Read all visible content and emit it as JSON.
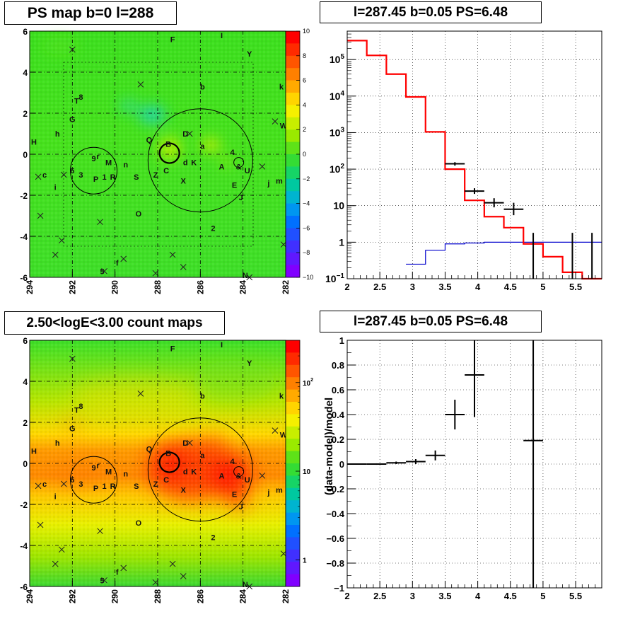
{
  "titles": {
    "tl": "PS map b=0 l=288",
    "tr": "l=287.45 b=0.05 PS=6.48",
    "bl": "2.50<logE<3.00 count maps",
    "br": "l=287.45 b=0.05 PS=6.48"
  },
  "colors": {
    "data": "#000000",
    "model": "#ff0000",
    "background": "#0000cc",
    "grid": "#000000"
  },
  "map_markers": [
    {
      "t": "F",
      "l": 287.3,
      "b": 5.6
    },
    {
      "t": "I",
      "l": 285.0,
      "b": 5.8
    },
    {
      "t": "Y",
      "l": 283.7,
      "b": 4.9
    },
    {
      "t": "b",
      "l": 285.9,
      "b": 3.3
    },
    {
      "t": "k",
      "l": 282.2,
      "b": 3.3
    },
    {
      "t": "8",
      "l": 291.6,
      "b": 2.8
    },
    {
      "t": "T",
      "l": 291.8,
      "b": 2.6
    },
    {
      "t": "G",
      "l": 292.0,
      "b": 1.7
    },
    {
      "t": "W",
      "l": 282.1,
      "b": 1.4
    },
    {
      "t": "h",
      "l": 292.7,
      "b": 1.0
    },
    {
      "t": "D",
      "l": 286.7,
      "b": 1.0
    },
    {
      "t": "H",
      "l": 293.8,
      "b": 0.6
    },
    {
      "t": "Q",
      "l": 288.4,
      "b": 0.7
    },
    {
      "t": "B",
      "l": 287.5,
      "b": 0.5
    },
    {
      "t": "a",
      "l": 285.9,
      "b": 0.4
    },
    {
      "t": "4",
      "l": 284.5,
      "b": 0.1
    },
    {
      "t": "9",
      "l": 291.0,
      "b": -0.2
    },
    {
      "t": "r",
      "l": 290.8,
      "b": -0.1
    },
    {
      "t": "M",
      "l": 290.3,
      "b": -0.4
    },
    {
      "t": "n",
      "l": 289.5,
      "b": -0.5
    },
    {
      "t": "d",
      "l": 286.7,
      "b": -0.4
    },
    {
      "t": "K",
      "l": 286.3,
      "b": -0.4
    },
    {
      "t": "A",
      "l": 285.0,
      "b": -0.6
    },
    {
      "t": "&",
      "l": 284.2,
      "b": -0.6
    },
    {
      "t": "U",
      "l": 283.8,
      "b": -0.8
    },
    {
      "t": "c",
      "l": 293.3,
      "b": -1.0
    },
    {
      "t": "6",
      "l": 292.0,
      "b": -0.8
    },
    {
      "t": "3",
      "l": 291.6,
      "b": -1.0
    },
    {
      "t": "P",
      "l": 290.9,
      "b": -1.2
    },
    {
      "t": "1",
      "l": 290.5,
      "b": -1.1
    },
    {
      "t": "R",
      "l": 290.1,
      "b": -1.1
    },
    {
      "t": "S",
      "l": 289.0,
      "b": -1.1
    },
    {
      "t": "Z",
      "l": 288.1,
      "b": -1.0
    },
    {
      "t": "C",
      "l": 287.6,
      "b": -0.8
    },
    {
      "t": "m",
      "l": 282.3,
      "b": -1.3
    },
    {
      "t": "X",
      "l": 286.8,
      "b": -1.3
    },
    {
      "t": "j",
      "l": 282.8,
      "b": -1.4
    },
    {
      "t": "i",
      "l": 292.8,
      "b": -1.6
    },
    {
      "t": "E",
      "l": 284.4,
      "b": -1.5
    },
    {
      "t": "J",
      "l": 284.1,
      "b": -2.1
    },
    {
      "t": "O",
      "l": 288.9,
      "b": -2.9
    },
    {
      "t": "2",
      "l": 285.4,
      "b": -3.6
    },
    {
      "t": "f",
      "l": 289.9,
      "b": -5.3
    },
    {
      "t": "5",
      "l": 290.6,
      "b": -5.7
    },
    {
      "t": "N",
      "l": 283.9,
      "b": -5.9
    }
  ],
  "chart_data": [
    {
      "type": "heatmap",
      "title": "PS map b=0 l=288",
      "xlabel": "",
      "ylabel": "",
      "xlim": [
        294,
        282
      ],
      "ylim": [
        -6,
        6
      ],
      "xticks": [
        294,
        292,
        290,
        288,
        286,
        284,
        282
      ],
      "yticks": [
        -6,
        -4,
        -2,
        0,
        2,
        4,
        6
      ],
      "colorbar": {
        "range": [
          -10,
          10
        ],
        "ticks": [
          -10,
          -8,
          -6,
          -4,
          -2,
          0,
          2,
          4,
          6,
          8,
          10
        ],
        "scale": "linear"
      }
    },
    {
      "type": "line",
      "title": "l=287.45 b=0.05 PS=6.48",
      "xlabel": "",
      "ylabel": "",
      "xlim": [
        2,
        5.9
      ],
      "ylim": [
        0.1,
        600000
      ],
      "yscale": "log",
      "grid": true,
      "xticks": [
        2,
        2.5,
        3,
        3.5,
        4,
        4.5,
        5,
        5.5
      ],
      "yticks": [
        {
          "v": 0.1,
          "base": "10",
          "exp": "−1"
        },
        {
          "v": 1,
          "base": "1",
          "exp": ""
        },
        {
          "v": 10,
          "base": "10",
          "exp": ""
        },
        {
          "v": 100,
          "base": "10",
          "exp": "2"
        },
        {
          "v": 1000,
          "base": "10",
          "exp": "3"
        },
        {
          "v": 10000,
          "base": "10",
          "exp": "4"
        },
        {
          "v": 100000,
          "base": "10",
          "exp": "5"
        }
      ],
      "bin_edges": [
        2.0,
        2.3,
        2.6,
        2.9,
        3.2,
        3.5,
        3.8,
        4.1,
        4.4,
        4.7,
        5.0,
        5.3,
        5.6,
        5.9
      ],
      "series": [
        {
          "values": [
            330000,
            130000,
            40000,
            9500,
            1050,
            100,
            14,
            5,
            2.5,
            0.9,
            0.4,
            0.15,
            0.1
          ]
        },
        {
          "values": [
            null,
            null,
            null,
            0.25,
            0.6,
            0.9,
            0.95,
            1,
            1,
            1,
            1,
            1,
            1
          ]
        }
      ],
      "points": [
        {
          "x": 3.65,
          "y": 140,
          "xerr": 0.15,
          "ylo": 125,
          "yhi": 155
        },
        {
          "x": 3.95,
          "y": 25,
          "xerr": 0.15,
          "ylo": 21,
          "yhi": 30
        },
        {
          "x": 4.25,
          "y": 12,
          "xerr": 0.15,
          "ylo": 9,
          "yhi": 16
        },
        {
          "x": 4.55,
          "y": 8,
          "xerr": 0.15,
          "ylo": 5.5,
          "yhi": 12
        },
        {
          "x": 4.85,
          "y": null,
          "xerr": 0.15,
          "ylo": 0.1,
          "yhi": 1.8
        },
        {
          "x": 5.45,
          "y": null,
          "xerr": 0.15,
          "ylo": 0.1,
          "yhi": 1.8
        },
        {
          "x": 5.75,
          "y": null,
          "xerr": 0.15,
          "ylo": 0.1,
          "yhi": 1.8
        }
      ]
    },
    {
      "type": "heatmap",
      "title": "2.50<logE<3.00 count maps",
      "xlabel": "",
      "ylabel": "",
      "xlim": [
        294,
        282
      ],
      "ylim": [
        -6,
        6
      ],
      "xticks": [
        294,
        292,
        290,
        288,
        286,
        284,
        282
      ],
      "yticks": [
        -6,
        -4,
        -2,
        0,
        2,
        4,
        6
      ],
      "colorbar": {
        "range": [
          0.5,
          300
        ],
        "scale": "log",
        "ticks": [
          {
            "v": 1,
            "base": "1",
            "exp": ""
          },
          {
            "v": 10,
            "base": "10",
            "exp": ""
          },
          {
            "v": 100,
            "base": "10",
            "exp": "2"
          }
        ]
      }
    },
    {
      "type": "scatter",
      "title": "l=287.45 b=0.05 PS=6.48",
      "xlabel": "",
      "ylabel": "(data-model)/model",
      "xlim": [
        2,
        5.9
      ],
      "ylim": [
        -1,
        1
      ],
      "grid": true,
      "xticks": [
        2,
        2.5,
        3,
        3.5,
        4,
        4.5,
        5,
        5.5
      ],
      "yticks": [
        -1,
        -0.8,
        -0.6,
        -0.4,
        -0.2,
        0,
        0.2,
        0.4,
        0.6,
        0.8,
        1
      ],
      "points": [
        {
          "x": 2.15,
          "y": 0.0,
          "xerr": 0.15,
          "ylo": -0.005,
          "yhi": 0.005
        },
        {
          "x": 2.45,
          "y": 0.0,
          "xerr": 0.15,
          "ylo": -0.006,
          "yhi": 0.006
        },
        {
          "x": 2.75,
          "y": 0.01,
          "xerr": 0.15,
          "ylo": 0.0,
          "yhi": 0.02
        },
        {
          "x": 3.05,
          "y": 0.02,
          "xerr": 0.15,
          "ylo": 0.0,
          "yhi": 0.04
        },
        {
          "x": 3.35,
          "y": 0.07,
          "xerr": 0.15,
          "ylo": 0.03,
          "yhi": 0.11
        },
        {
          "x": 3.65,
          "y": 0.4,
          "xerr": 0.15,
          "ylo": 0.28,
          "yhi": 0.52
        },
        {
          "x": 3.95,
          "y": 0.72,
          "xerr": 0.15,
          "ylo": 0.38,
          "yhi": 1.0
        },
        {
          "x": 4.85,
          "y": 0.19,
          "xerr": 0.15,
          "ylo": -1.0,
          "yhi": 1.0
        }
      ]
    }
  ]
}
